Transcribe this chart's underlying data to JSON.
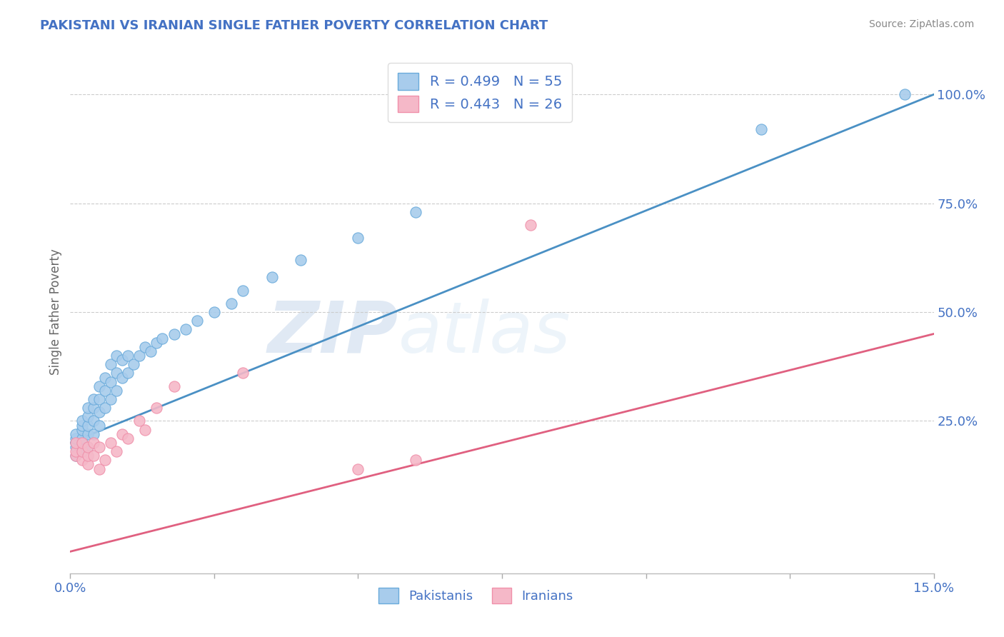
{
  "title": "PAKISTANI VS IRANIAN SINGLE FATHER POVERTY CORRELATION CHART",
  "source": "Source: ZipAtlas.com",
  "ylabel": "Single Father Poverty",
  "xlim": [
    0.0,
    0.15
  ],
  "ylim": [
    -0.1,
    1.1
  ],
  "xticks": [
    0.0,
    0.025,
    0.05,
    0.075,
    0.1,
    0.125,
    0.15
  ],
  "xticklabels": [
    "0.0%",
    "",
    "",
    "",
    "",
    "",
    "15.0%"
  ],
  "yticks_right": [
    0.25,
    0.5,
    0.75,
    1.0
  ],
  "yticklabels_right": [
    "25.0%",
    "50.0%",
    "75.0%",
    "100.0%"
  ],
  "pakistani_color": "#A8CCEC",
  "iranian_color": "#F5B8C8",
  "pakistani_edge_color": "#6AABDB",
  "iranian_edge_color": "#F090AA",
  "pakistani_line_color": "#4A90C4",
  "iranian_line_color": "#E06080",
  "pakistani_R": 0.499,
  "pakistani_N": 55,
  "iranian_R": 0.443,
  "iranian_N": 26,
  "legend_label_1": "Pakistanis",
  "legend_label_2": "Iranians",
  "grid_color": "#CCCCCC",
  "background_color": "#FFFFFF",
  "title_color": "#4472C4",
  "axis_label_color": "#4472C4",
  "source_color": "#888888",
  "watermark_zip": "ZIP",
  "watermark_atlas": "atlas",
  "pakistani_x": [
    0.001,
    0.001,
    0.001,
    0.001,
    0.001,
    0.002,
    0.002,
    0.002,
    0.002,
    0.002,
    0.002,
    0.003,
    0.003,
    0.003,
    0.003,
    0.003,
    0.004,
    0.004,
    0.004,
    0.004,
    0.005,
    0.005,
    0.005,
    0.005,
    0.006,
    0.006,
    0.006,
    0.007,
    0.007,
    0.007,
    0.008,
    0.008,
    0.008,
    0.009,
    0.009,
    0.01,
    0.01,
    0.011,
    0.012,
    0.013,
    0.014,
    0.015,
    0.016,
    0.018,
    0.02,
    0.022,
    0.025,
    0.028,
    0.03,
    0.035,
    0.04,
    0.05,
    0.06,
    0.12,
    0.145
  ],
  "pakistani_y": [
    0.17,
    0.19,
    0.2,
    0.21,
    0.22,
    0.18,
    0.2,
    0.21,
    0.23,
    0.24,
    0.25,
    0.19,
    0.22,
    0.24,
    0.26,
    0.28,
    0.22,
    0.25,
    0.28,
    0.3,
    0.24,
    0.27,
    0.3,
    0.33,
    0.28,
    0.32,
    0.35,
    0.3,
    0.34,
    0.38,
    0.32,
    0.36,
    0.4,
    0.35,
    0.39,
    0.36,
    0.4,
    0.38,
    0.4,
    0.42,
    0.41,
    0.43,
    0.44,
    0.45,
    0.46,
    0.48,
    0.5,
    0.52,
    0.55,
    0.58,
    0.62,
    0.67,
    0.73,
    0.92,
    1.0
  ],
  "iranian_x": [
    0.001,
    0.001,
    0.001,
    0.002,
    0.002,
    0.002,
    0.003,
    0.003,
    0.003,
    0.004,
    0.004,
    0.005,
    0.005,
    0.006,
    0.007,
    0.008,
    0.009,
    0.01,
    0.012,
    0.013,
    0.015,
    0.018,
    0.03,
    0.05,
    0.06,
    0.08
  ],
  "iranian_y": [
    0.17,
    0.18,
    0.2,
    0.16,
    0.18,
    0.2,
    0.15,
    0.17,
    0.19,
    0.17,
    0.2,
    0.14,
    0.19,
    0.16,
    0.2,
    0.18,
    0.22,
    0.21,
    0.25,
    0.23,
    0.28,
    0.33,
    0.36,
    0.14,
    0.16,
    0.7
  ],
  "pak_line_x0": 0.0,
  "pak_line_y0": 0.2,
  "pak_line_x1": 0.15,
  "pak_line_y1": 1.0,
  "iran_line_x0": 0.0,
  "iran_line_y0": -0.05,
  "iran_line_x1": 0.15,
  "iran_line_y1": 0.45
}
